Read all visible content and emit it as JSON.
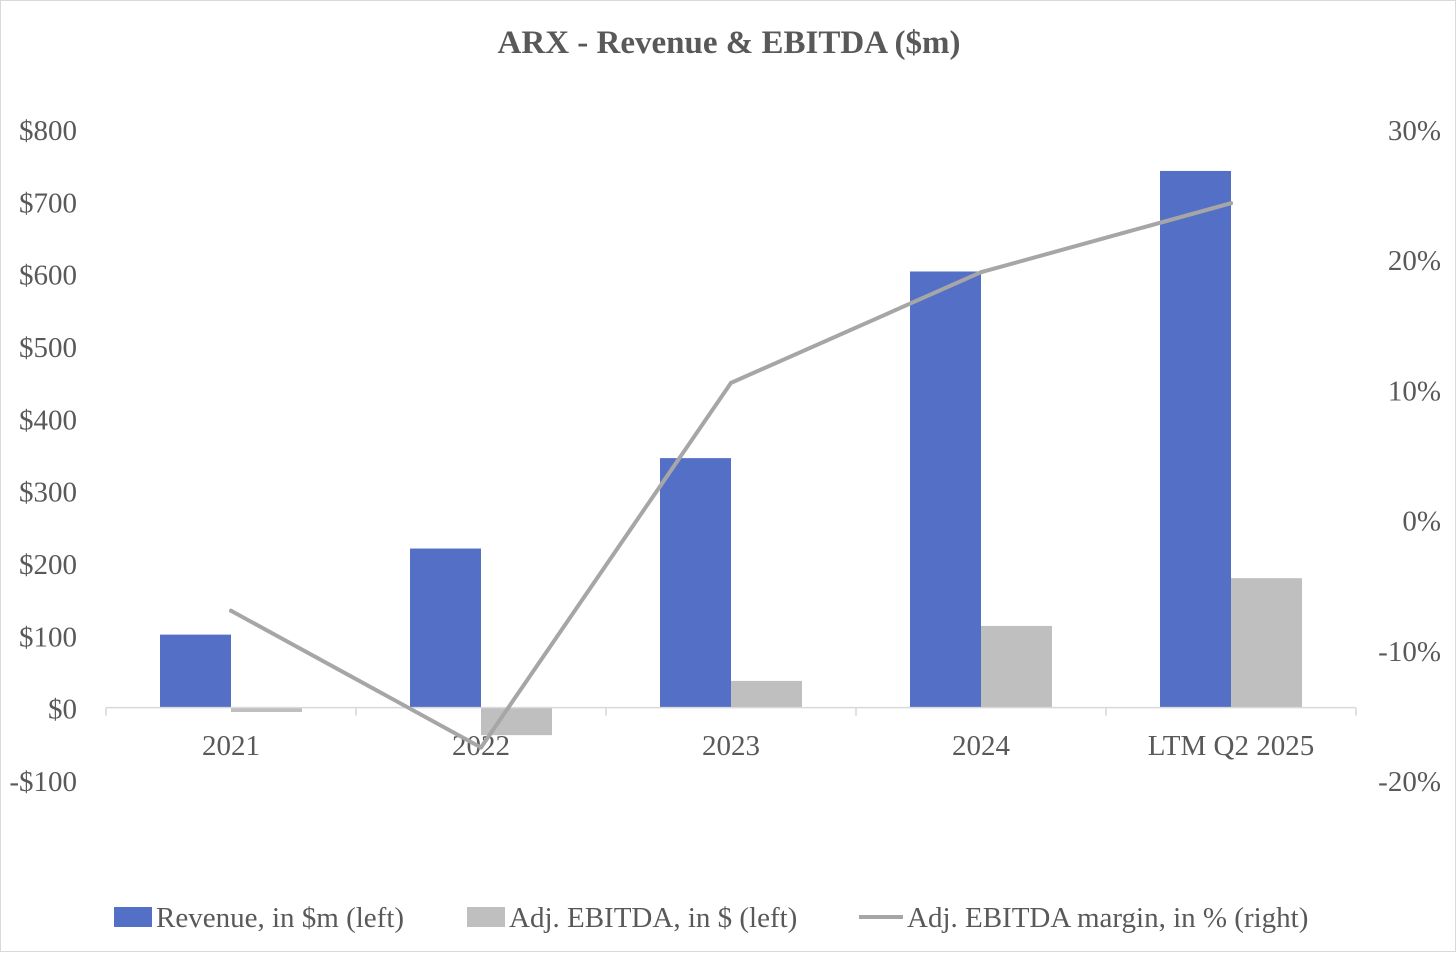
{
  "chart_data": {
    "type": "bar",
    "title": "ARX - Revenue & EBITDA ($m)",
    "categories": [
      "2021",
      "2022",
      "2023",
      "2024",
      "LTM Q2  2025"
    ],
    "series": [
      {
        "name": "Revenue, in $m (left)",
        "type": "bar",
        "axis": "left",
        "color": "#5470C6",
        "values": [
          101,
          220,
          345,
          603,
          742
        ]
      },
      {
        "name": "Adj. EBITDA, in $ (left)",
        "type": "bar",
        "axis": "left",
        "color": "#BFBFBF",
        "values": [
          -6,
          -38,
          37,
          113,
          179
        ]
      },
      {
        "name": "Adj. EBITDA margin, in % (right)",
        "type": "line",
        "axis": "right",
        "color": "#A6A6A6",
        "values": [
          -7,
          -17.5,
          10.5,
          19,
          24.3
        ]
      }
    ],
    "left_axis": {
      "ylim": [
        -100,
        800
      ],
      "ticks": [
        -100,
        0,
        100,
        200,
        300,
        400,
        500,
        600,
        700,
        800
      ],
      "tick_labels": [
        "-$100",
        "$0",
        "$100",
        "$200",
        "$300",
        "$400",
        "$500",
        "$600",
        "$700",
        "$800"
      ]
    },
    "right_axis": {
      "ylim": [
        -20,
        30
      ],
      "ticks": [
        -20,
        -10,
        0,
        10,
        20,
        30
      ],
      "tick_labels": [
        "-20%",
        "-10%",
        "0%",
        "10%",
        "20%",
        "30%"
      ]
    },
    "grid": false,
    "legend": {
      "position": "bottom",
      "entries": [
        "Revenue, in $m (left)",
        "Adj. EBITDA, in $ (left)",
        "Adj. EBITDA margin, in % (right)"
      ]
    }
  }
}
